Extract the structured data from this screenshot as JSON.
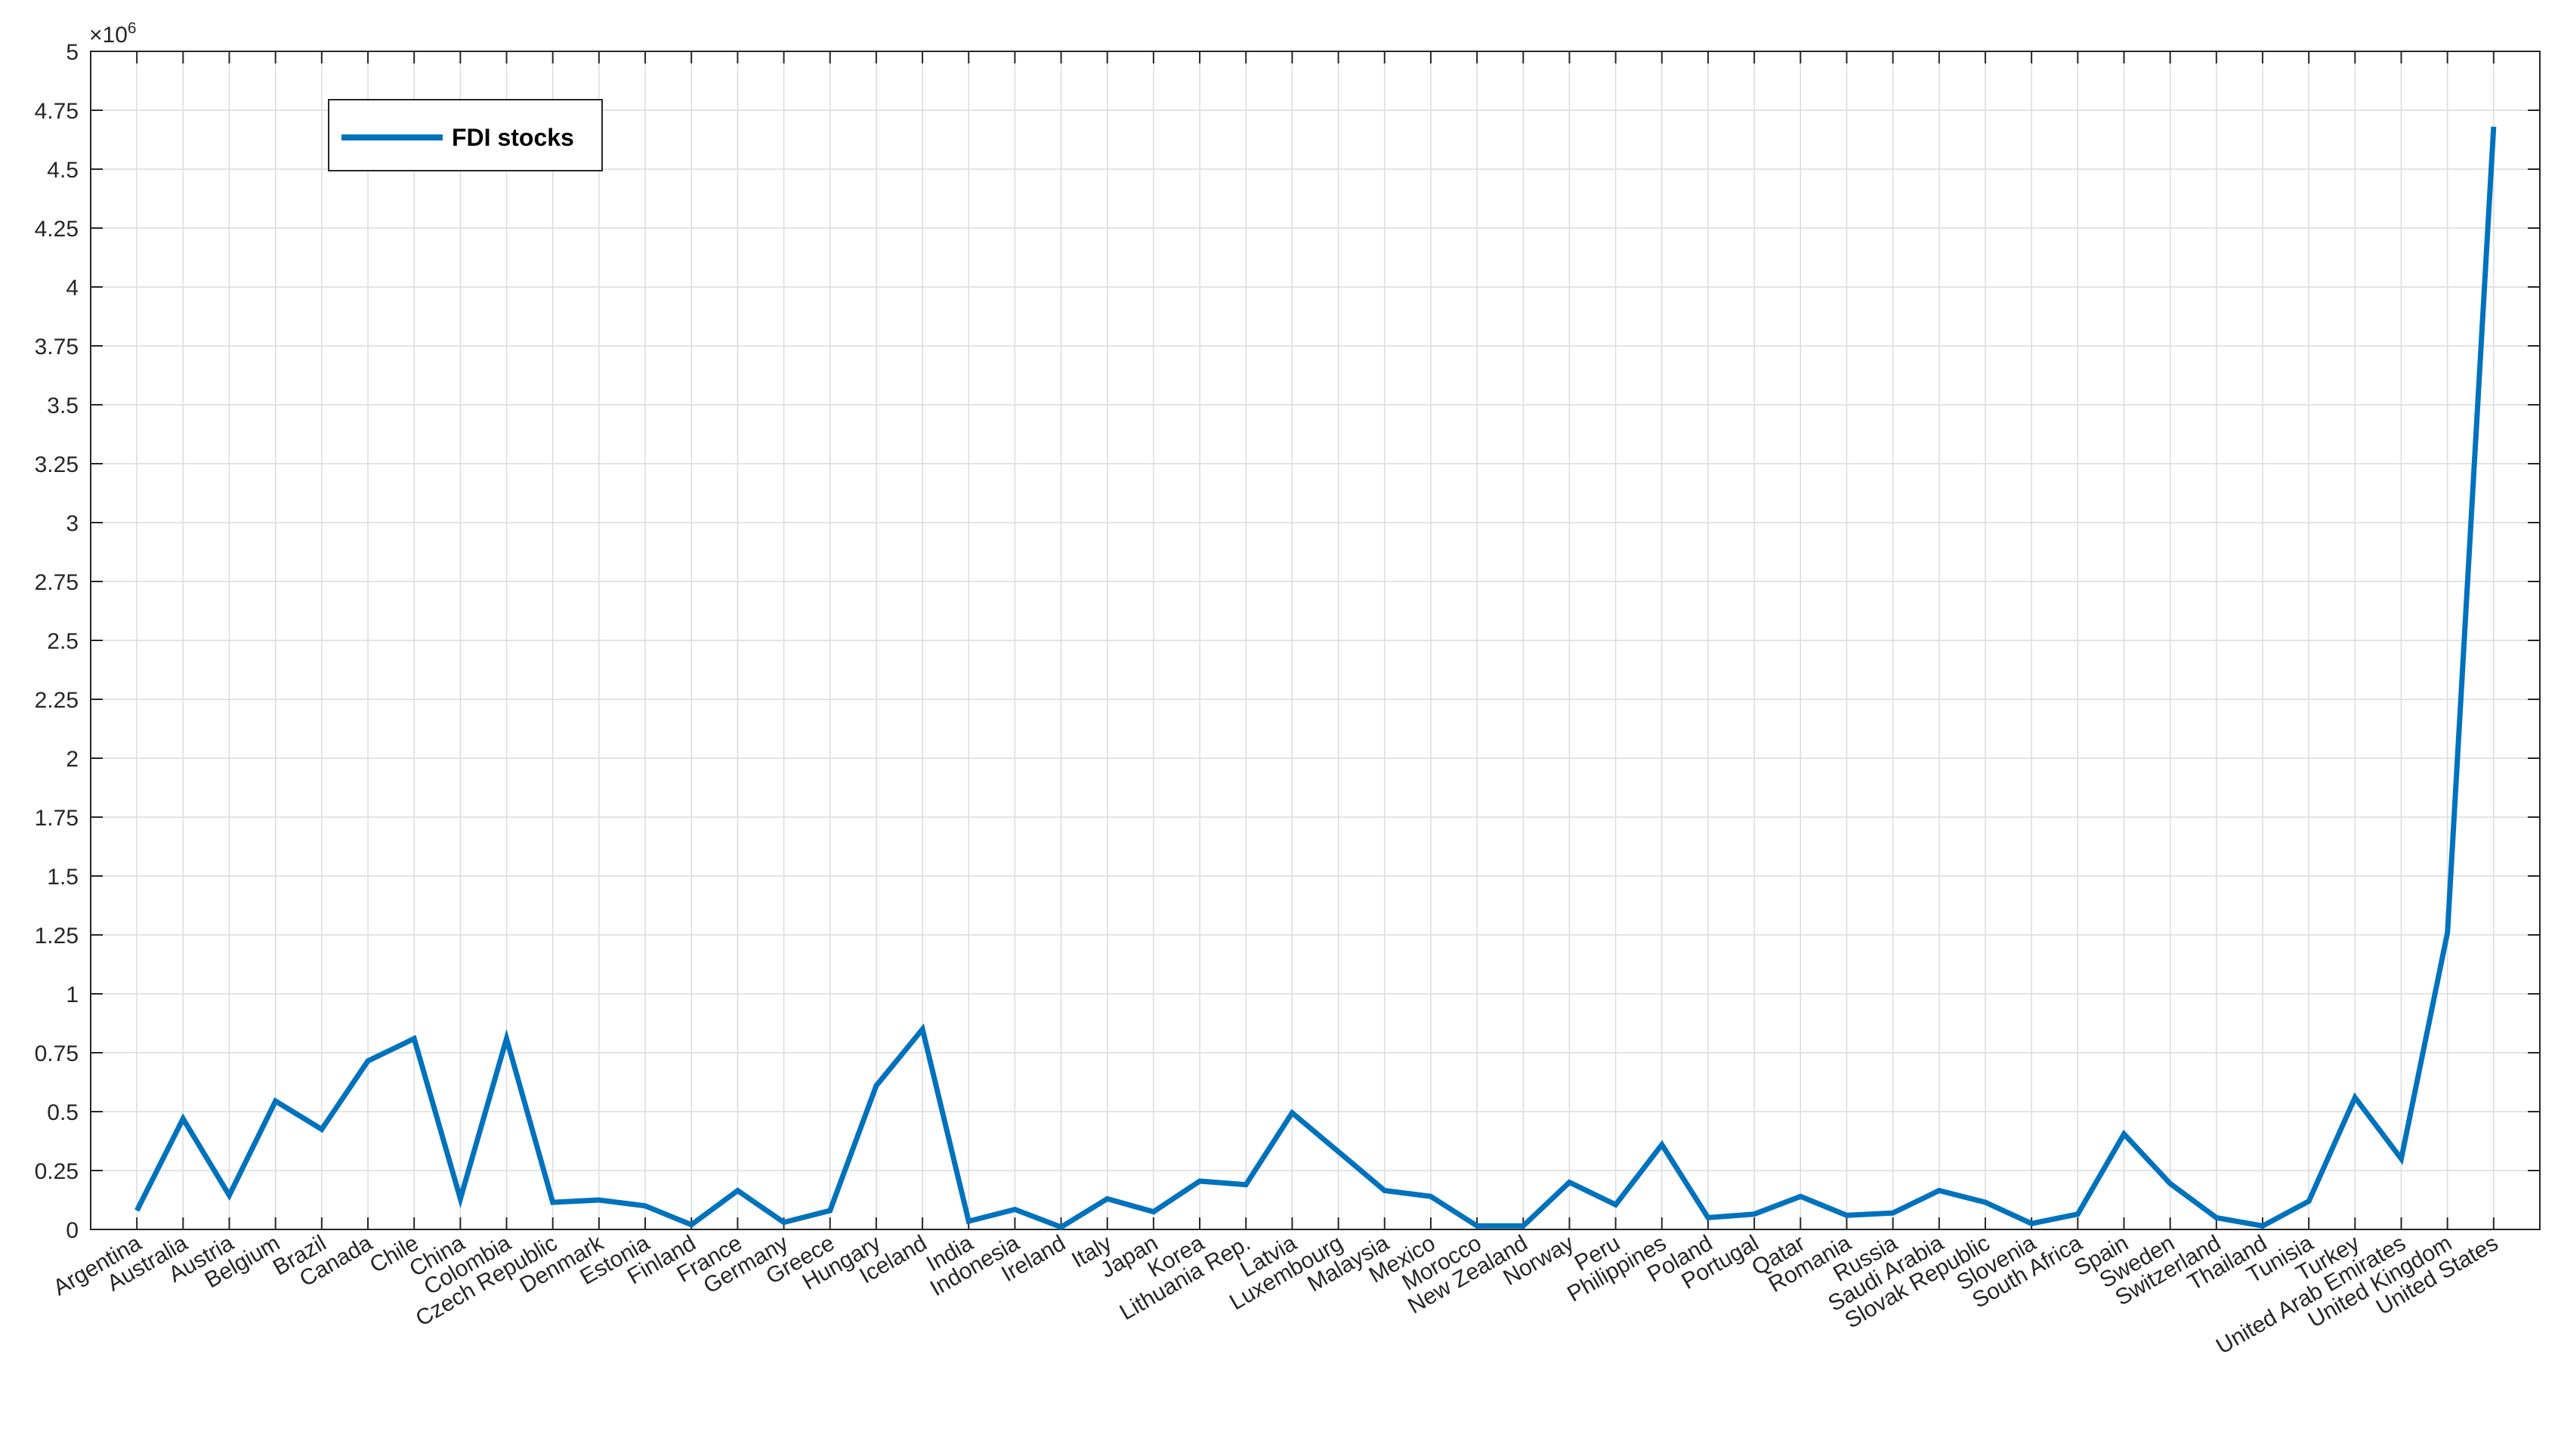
{
  "chart_data": {
    "type": "line",
    "multiplier_label": "×10",
    "multiplier_exponent": "6",
    "categories": [
      "Argentina",
      "Australia",
      "Austria",
      "Belgium",
      "Brazil",
      "Canada",
      "Chile",
      "China",
      "Colombia",
      "Czech Republic",
      "Denmark",
      "Estonia",
      "Finland",
      "France",
      "Germany",
      "Greece",
      "Hungary",
      "Iceland",
      "India",
      "Indonesia",
      "Ireland",
      "Italy",
      "Japan",
      "Korea",
      "Lithuania Rep.",
      "Latvia",
      "Luxembourg",
      "Malaysia",
      "Mexico",
      "Morocco",
      "New Zealand",
      "Norway",
      "Peru",
      "Philippines",
      "Poland",
      "Portugal",
      "Qatar",
      "Romania",
      "Russia",
      "Saudi Arabia",
      "Slovak Republic",
      "Slovenia",
      "South Africa",
      "Spain",
      "Sweden",
      "Switzerland",
      "Thailand",
      "Tunisia",
      "Turkey",
      "United Arab Emirates",
      "United Kingdom",
      "United States"
    ],
    "series": [
      {
        "name": "FDI stocks",
        "color": "#0072BD",
        "values": [
          80000,
          470000,
          145000,
          545000,
          425000,
          715000,
          810000,
          130000,
          810000,
          115000,
          125000,
          100000,
          20000,
          165000,
          30000,
          80000,
          610000,
          850000,
          35000,
          85000,
          10000,
          130000,
          75000,
          205000,
          190000,
          495000,
          330000,
          165000,
          140000,
          15000,
          15000,
          200000,
          105000,
          360000,
          50000,
          65000,
          140000,
          60000,
          70000,
          165000,
          115000,
          25000,
          65000,
          405000,
          195000,
          50000,
          15000,
          120000,
          560000,
          300000,
          1260000,
          4680000
        ]
      }
    ],
    "yticks": [
      "0",
      "0.25",
      "0.5",
      "0.75",
      "1",
      "1.25",
      "1.5",
      "1.75",
      "2",
      "2.25",
      "2.5",
      "2.75",
      "3",
      "3.25",
      "3.5",
      "3.75",
      "4",
      "4.25",
      "4.5",
      "4.75",
      "5"
    ],
    "ylim": [
      0,
      5000000
    ],
    "grid": true,
    "legend_position": "top-left"
  }
}
